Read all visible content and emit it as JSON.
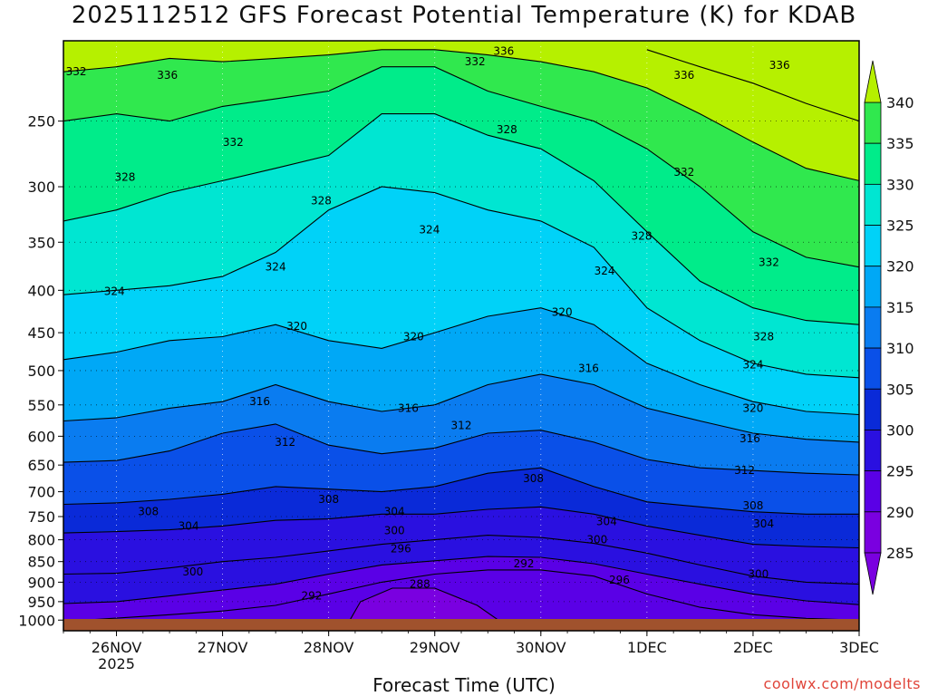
{
  "title": "2025112512 GFS Forecast Potential Temperature (K) for KDAB",
  "xlabel": "Forecast Time (UTC)",
  "credit": "coolwx.com/modelts",
  "colors": {
    "ground": "#a0522d",
    "bands": [
      "#7a00e0",
      "#5a00e6",
      "#2a10e0",
      "#0a2ad8",
      "#0a50e8",
      "#0a7cf0",
      "#00a8f6",
      "#00d2f8",
      "#00e6d2",
      "#00ec8a",
      "#30e84e",
      "#8ae60a",
      "#b6f000"
    ]
  },
  "chart_data": {
    "type": "contour",
    "title": "2025112512 GFS Forecast Potential Temperature (K) for KDAB",
    "xlabel": "Forecast Time (UTC)",
    "ylabel": "",
    "x_ticks": [
      "26NOV",
      "27NOV",
      "28NOV",
      "29NOV",
      "30NOV",
      "1DEC",
      "2DEC",
      "3DEC"
    ],
    "x_sublabel": "2025",
    "x_range_days": [
      -0.5,
      7.0
    ],
    "y_ticks": [
      250,
      300,
      350,
      400,
      450,
      500,
      550,
      600,
      650,
      700,
      750,
      800,
      850,
      900,
      950,
      1000
    ],
    "y_range_hpa": [
      200,
      1030
    ],
    "colorbar": {
      "levels": [
        285,
        290,
        295,
        300,
        305,
        310,
        315,
        320,
        325,
        330,
        335,
        340
      ],
      "labels": [
        "340",
        "335",
        "330",
        "325",
        "320",
        "315",
        "310",
        "305",
        "300",
        "295",
        "290",
        "285"
      ]
    },
    "contour_interval_k": 4,
    "series": [
      {
        "name": "288",
        "x": [
          3.6,
          3.4,
          3.0,
          2.6,
          2.3,
          2.2,
          2.5,
          3.0,
          3.5,
          3.6
        ],
        "hpa": [
          1000,
          960,
          915,
          915,
          950,
          1000,
          1005,
          1005,
          1005,
          1000
        ]
      },
      {
        "name": "292",
        "x": [
          -0.3,
          0.5,
          1.0,
          1.5,
          2.0,
          2.5,
          3.0,
          3.5,
          4.0,
          4.5,
          5.0,
          5.5,
          6.0,
          6.5,
          7.0
        ],
        "hpa": [
          1000,
          985,
          975,
          960,
          930,
          900,
          880,
          870,
          870,
          885,
          930,
          965,
          985,
          995,
          1000
        ]
      },
      {
        "name": "296",
        "x": [
          -0.5,
          0,
          0.5,
          1.0,
          1.5,
          2.0,
          2.5,
          3.0,
          3.5,
          4.0,
          4.5,
          5.0,
          5.5,
          6.0,
          6.5,
          7.0
        ],
        "hpa": [
          955,
          950,
          935,
          920,
          905,
          880,
          858,
          848,
          838,
          840,
          855,
          880,
          905,
          930,
          948,
          958
        ]
      },
      {
        "name": "300",
        "x": [
          -0.5,
          0,
          0.5,
          1.0,
          1.5,
          2.0,
          2.5,
          3.0,
          3.5,
          4.0,
          4.5,
          5.0,
          5.5,
          6.0,
          6.5,
          7.0
        ],
        "hpa": [
          880,
          878,
          865,
          850,
          840,
          825,
          810,
          800,
          790,
          795,
          808,
          830,
          858,
          885,
          900,
          905
        ]
      },
      {
        "name": "304",
        "x": [
          -0.5,
          0,
          0.5,
          1.0,
          1.5,
          2.0,
          2.5,
          3.0,
          3.5,
          4.0,
          4.5,
          5.0,
          5.5,
          6.0,
          6.5,
          7.0
        ],
        "hpa": [
          785,
          782,
          778,
          770,
          758,
          755,
          745,
          745,
          735,
          730,
          745,
          770,
          790,
          810,
          815,
          818
        ]
      },
      {
        "name": "308",
        "x": [
          -0.5,
          0,
          0.5,
          1.0,
          1.5,
          2.0,
          2.5,
          3.0,
          3.5,
          4.0,
          4.5,
          5.0,
          5.5,
          6.0,
          6.5,
          7.0
        ],
        "hpa": [
          725,
          722,
          715,
          705,
          690,
          695,
          700,
          690,
          665,
          655,
          690,
          720,
          730,
          740,
          745,
          745
        ]
      },
      {
        "name": "312",
        "x": [
          -0.5,
          0,
          0.5,
          1.0,
          1.5,
          2.0,
          2.5,
          3.0,
          3.5,
          4.0,
          4.5,
          5.0,
          5.5,
          6.0,
          6.5,
          7.0
        ],
        "hpa": [
          645,
          642,
          625,
          595,
          580,
          615,
          630,
          620,
          595,
          590,
          610,
          640,
          655,
          660,
          665,
          668
        ]
      },
      {
        "name": "316",
        "x": [
          -0.5,
          0,
          0.5,
          1.0,
          1.5,
          2.0,
          2.5,
          3.0,
          3.5,
          4.0,
          4.5,
          5.0,
          5.5,
          6.0,
          6.5,
          7.0
        ],
        "hpa": [
          575,
          570,
          555,
          545,
          520,
          545,
          560,
          550,
          520,
          505,
          520,
          555,
          575,
          595,
          605,
          610
        ]
      },
      {
        "name": "320",
        "x": [
          -0.5,
          0,
          0.5,
          1.0,
          1.5,
          2.0,
          2.5,
          3.0,
          3.5,
          4.0,
          4.5,
          5.0,
          5.5,
          6.0,
          6.5,
          7.0
        ],
        "hpa": [
          485,
          475,
          460,
          455,
          440,
          460,
          470,
          450,
          430,
          420,
          440,
          490,
          520,
          545,
          560,
          565
        ]
      },
      {
        "name": "324",
        "x": [
          -0.5,
          0,
          0.5,
          1.0,
          1.5,
          2.0,
          2.5,
          3.0,
          3.5,
          4.0,
          4.5,
          5.0,
          5.5,
          6.0,
          6.5,
          7.0
        ],
        "hpa": [
          405,
          400,
          395,
          385,
          360,
          320,
          300,
          305,
          320,
          330,
          355,
          420,
          460,
          490,
          505,
          510
        ]
      },
      {
        "name": "328",
        "x": [
          -0.5,
          0,
          0.5,
          1.0,
          1.5,
          2.0,
          2.5,
          3.0,
          3.5,
          4.0,
          4.5,
          5.0,
          5.5,
          6.0,
          6.5,
          7.0
        ],
        "hpa": [
          330,
          320,
          305,
          295,
          285,
          275,
          245,
          245,
          260,
          270,
          295,
          340,
          390,
          420,
          435,
          440
        ]
      },
      {
        "name": "332",
        "x": [
          -0.5,
          0,
          0.5,
          1.0,
          1.5,
          2.0,
          2.5,
          3.0,
          3.5,
          4.0,
          4.5,
          5.0,
          5.5,
          6.0,
          6.5,
          7.0
        ],
        "hpa": [
          250,
          245,
          250,
          240,
          235,
          230,
          215,
          215,
          230,
          240,
          250,
          270,
          300,
          340,
          365,
          375
        ]
      },
      {
        "name": "336",
        "x": [
          -0.5,
          0,
          0.5,
          1.0,
          1.5,
          2.0,
          2.5,
          3.0,
          3.5,
          4.0,
          4.5,
          5.0,
          5.5,
          6.0,
          6.5,
          7.0
        ],
        "hpa": [
          218,
          215,
          210,
          212,
          210,
          208,
          205,
          205,
          208,
          212,
          218,
          228,
          245,
          265,
          285,
          295
        ]
      },
      {
        "name": "340",
        "x": [
          5.0,
          5.5,
          6.0,
          6.5,
          7.0
        ],
        "hpa": [
          205,
          215,
          225,
          238,
          250
        ]
      }
    ],
    "contour_labels": [
      {
        "text": "332",
        "x": -0.38,
        "hpa": 218
      },
      {
        "text": "336",
        "x": 0.48,
        "hpa": 220
      },
      {
        "text": "332",
        "x": 1.1,
        "hpa": 265
      },
      {
        "text": "328",
        "x": 0.08,
        "hpa": 292
      },
      {
        "text": "328",
        "x": 1.93,
        "hpa": 312
      },
      {
        "text": "324",
        "x": 2.95,
        "hpa": 338
      },
      {
        "text": "332",
        "x": 3.38,
        "hpa": 212
      },
      {
        "text": "336",
        "x": 3.65,
        "hpa": 206
      },
      {
        "text": "328",
        "x": 3.68,
        "hpa": 256
      },
      {
        "text": "336",
        "x": 5.35,
        "hpa": 220
      },
      {
        "text": "336",
        "x": 6.25,
        "hpa": 214
      },
      {
        "text": "332",
        "x": 5.35,
        "hpa": 288
      },
      {
        "text": "328",
        "x": 4.95,
        "hpa": 344
      },
      {
        "text": "324",
        "x": 4.6,
        "hpa": 379
      },
      {
        "text": "332",
        "x": 6.15,
        "hpa": 370
      },
      {
        "text": "324",
        "x": 1.5,
        "hpa": 375
      },
      {
        "text": "324",
        "x": -0.02,
        "hpa": 401
      },
      {
        "text": "320",
        "x": 1.7,
        "hpa": 442
      },
      {
        "text": "320",
        "x": 2.8,
        "hpa": 455
      },
      {
        "text": "320",
        "x": 4.2,
        "hpa": 425
      },
      {
        "text": "316",
        "x": 4.45,
        "hpa": 497
      },
      {
        "text": "328",
        "x": 6.1,
        "hpa": 455
      },
      {
        "text": "324",
        "x": 6.0,
        "hpa": 492
      },
      {
        "text": "316",
        "x": 1.35,
        "hpa": 545
      },
      {
        "text": "316",
        "x": 2.75,
        "hpa": 555
      },
      {
        "text": "312",
        "x": 3.25,
        "hpa": 582
      },
      {
        "text": "320",
        "x": 6.0,
        "hpa": 555
      },
      {
        "text": "316",
        "x": 5.97,
        "hpa": 604
      },
      {
        "text": "312",
        "x": 1.59,
        "hpa": 610
      },
      {
        "text": "312",
        "x": 5.92,
        "hpa": 660
      },
      {
        "text": "308",
        "x": 3.93,
        "hpa": 675
      },
      {
        "text": "308",
        "x": 2.0,
        "hpa": 715
      },
      {
        "text": "308",
        "x": 0.3,
        "hpa": 740
      },
      {
        "text": "308",
        "x": 6.0,
        "hpa": 728
      },
      {
        "text": "304",
        "x": 2.62,
        "hpa": 740
      },
      {
        "text": "304",
        "x": 0.68,
        "hpa": 770
      },
      {
        "text": "304",
        "x": 4.62,
        "hpa": 760
      },
      {
        "text": "304",
        "x": 6.1,
        "hpa": 765
      },
      {
        "text": "300",
        "x": 2.62,
        "hpa": 780
      },
      {
        "text": "300",
        "x": 4.53,
        "hpa": 800
      },
      {
        "text": "296",
        "x": 2.68,
        "hpa": 820
      },
      {
        "text": "292",
        "x": 3.84,
        "hpa": 855
      },
      {
        "text": "300",
        "x": 0.72,
        "hpa": 875
      },
      {
        "text": "296",
        "x": 4.74,
        "hpa": 895
      },
      {
        "text": "300",
        "x": 6.05,
        "hpa": 880
      },
      {
        "text": "288",
        "x": 2.86,
        "hpa": 905
      },
      {
        "text": "292",
        "x": 1.84,
        "hpa": 935
      }
    ]
  }
}
